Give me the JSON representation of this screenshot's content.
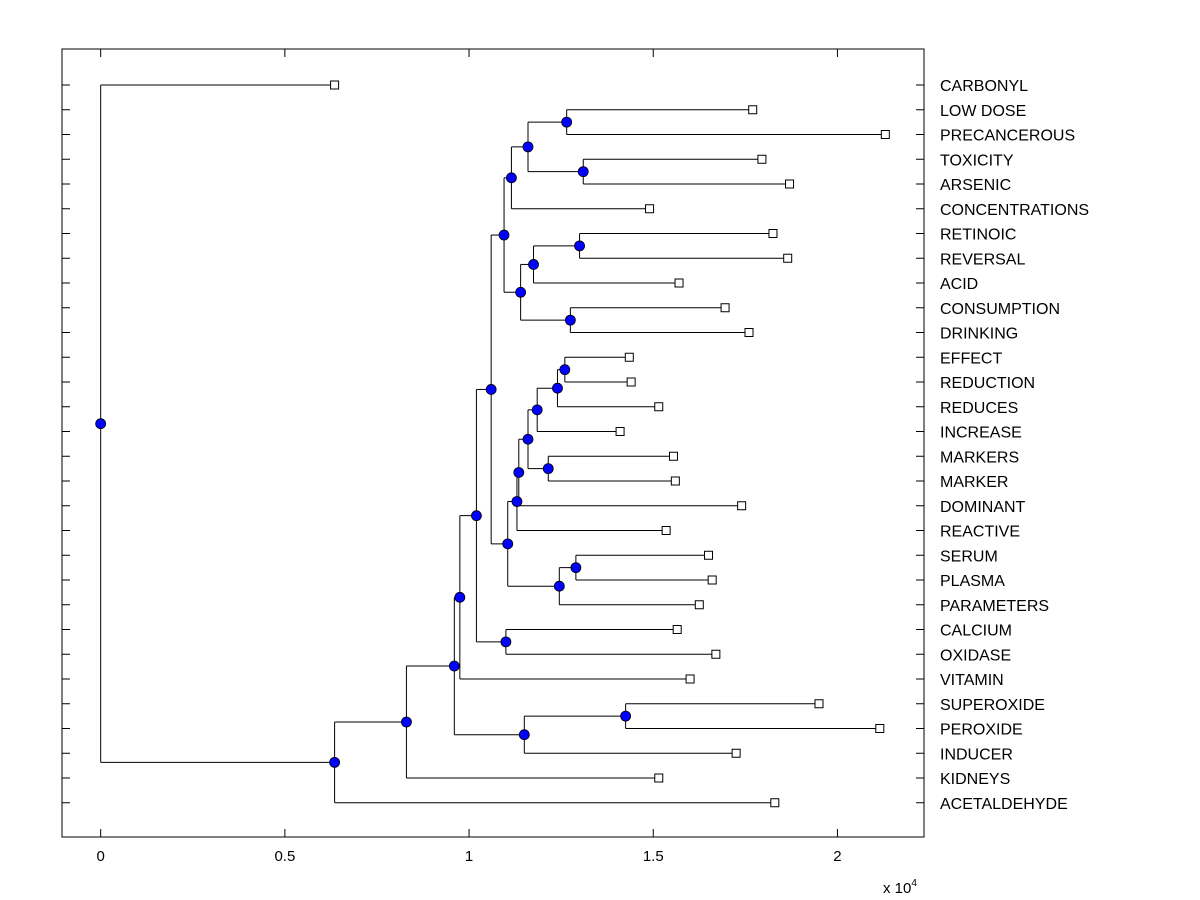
{
  "chart_data": {
    "type": "dendrogram",
    "orientation": "horizontal",
    "x_axis": {
      "lim": [
        -1050,
        22350
      ],
      "ticks": [
        0,
        0.5,
        1,
        1.5,
        2
      ],
      "tick_labels": [
        "0",
        "0.5",
        "1",
        "1.5",
        "2"
      ],
      "scale": 10000,
      "scale_label": "x 10",
      "scale_exponent": "4"
    },
    "leaf_label_color": "#000000",
    "node_color": "#0000ff",
    "leaves": [
      {
        "label": "CARBONYL",
        "value": 6350
      },
      {
        "label": "LOW DOSE",
        "value": 17700
      },
      {
        "label": "PRECANCEROUS",
        "value": 21300
      },
      {
        "label": "TOXICITY",
        "value": 17950
      },
      {
        "label": "ARSENIC",
        "value": 18700
      },
      {
        "label": "CONCENTRATIONS",
        "value": 14900
      },
      {
        "label": "RETINOIC",
        "value": 18250
      },
      {
        "label": "REVERSAL",
        "value": 18650
      },
      {
        "label": "ACID",
        "value": 15700
      },
      {
        "label": "CONSUMPTION",
        "value": 16950
      },
      {
        "label": "DRINKING",
        "value": 17600
      },
      {
        "label": "EFFECT",
        "value": 14350
      },
      {
        "label": "REDUCTION",
        "value": 14400
      },
      {
        "label": "REDUCES",
        "value": 15150
      },
      {
        "label": "INCREASE",
        "value": 14100
      },
      {
        "label": "MARKERS",
        "value": 15550
      },
      {
        "label": "MARKER",
        "value": 15600
      },
      {
        "label": "DOMINANT",
        "value": 17400
      },
      {
        "label": "REACTIVE",
        "value": 15350
      },
      {
        "label": "SERUM",
        "value": 16500
      },
      {
        "label": "PLASMA",
        "value": 16600
      },
      {
        "label": "PARAMETERS",
        "value": 16250
      },
      {
        "label": "CALCIUM",
        "value": 15650
      },
      {
        "label": "OXIDASE",
        "value": 16700
      },
      {
        "label": "VITAMIN",
        "value": 16000
      },
      {
        "label": "SUPEROXIDE",
        "value": 19500
      },
      {
        "label": "PEROXIDE",
        "value": 21150
      },
      {
        "label": "INDUCER",
        "value": 17250
      },
      {
        "label": "KIDNEYS",
        "value": 15150
      },
      {
        "label": "ACETALDEHYDE",
        "value": 18300
      }
    ],
    "merges": [
      {
        "id": "n1",
        "value": 12650,
        "children": [
          "L1",
          "L2"
        ]
      },
      {
        "id": "n2",
        "value": 13100,
        "children": [
          "L3",
          "L4"
        ]
      },
      {
        "id": "n3",
        "value": 11600,
        "children": [
          "n1",
          "n2"
        ]
      },
      {
        "id": "n4",
        "value": 11150,
        "children": [
          "n3",
          "L5"
        ]
      },
      {
        "id": "n5",
        "value": 13000,
        "children": [
          "L6",
          "L7"
        ]
      },
      {
        "id": "n6",
        "value": 11750,
        "children": [
          "n5",
          "L8"
        ]
      },
      {
        "id": "n7",
        "value": 12750,
        "children": [
          "L9",
          "L10"
        ]
      },
      {
        "id": "n8",
        "value": 11400,
        "children": [
          "n6",
          "n7"
        ]
      },
      {
        "id": "n9",
        "value": 10950,
        "children": [
          "n4",
          "n8"
        ]
      },
      {
        "id": "n10",
        "value": 12600,
        "children": [
          "L11",
          "L12"
        ]
      },
      {
        "id": "n11",
        "value": 12400,
        "children": [
          "n10",
          "L13"
        ]
      },
      {
        "id": "n12",
        "value": 11850,
        "children": [
          "n11",
          "L14"
        ]
      },
      {
        "id": "n13",
        "value": 12150,
        "children": [
          "L15",
          "L16"
        ]
      },
      {
        "id": "n14",
        "value": 11600,
        "children": [
          "n12",
          "n13"
        ]
      },
      {
        "id": "n15",
        "value": 11350,
        "children": [
          "n14",
          "L17"
        ]
      },
      {
        "id": "n16",
        "value": 11300,
        "children": [
          "n15",
          "L18"
        ]
      },
      {
        "id": "n17",
        "value": 12900,
        "children": [
          "L19",
          "L20"
        ]
      },
      {
        "id": "n18",
        "value": 12450,
        "children": [
          "n17",
          "L21"
        ]
      },
      {
        "id": "n19",
        "value": 11050,
        "children": [
          "n16",
          "n18"
        ]
      },
      {
        "id": "n20",
        "value": 10600,
        "children": [
          "n9",
          "n19"
        ]
      },
      {
        "id": "n21",
        "value": 11000,
        "children": [
          "L22",
          "L23"
        ]
      },
      {
        "id": "n22",
        "value": 10200,
        "children": [
          "n20",
          "n21"
        ]
      },
      {
        "id": "n23",
        "value": 9750,
        "children": [
          "n22",
          "L24"
        ]
      },
      {
        "id": "n24",
        "value": 14250,
        "children": [
          "L25",
          "L26"
        ]
      },
      {
        "id": "n25",
        "value": 11500,
        "children": [
          "n24",
          "L27"
        ]
      },
      {
        "id": "n26",
        "value": 9600,
        "children": [
          "n23",
          "n25"
        ]
      },
      {
        "id": "n27",
        "value": 8300,
        "children": [
          "n26",
          "L28"
        ]
      },
      {
        "id": "n28",
        "value": 6350,
        "children": [
          "n27",
          "L29"
        ]
      },
      {
        "id": "n29",
        "value": 0,
        "children": [
          "L0",
          "n28"
        ]
      }
    ]
  }
}
